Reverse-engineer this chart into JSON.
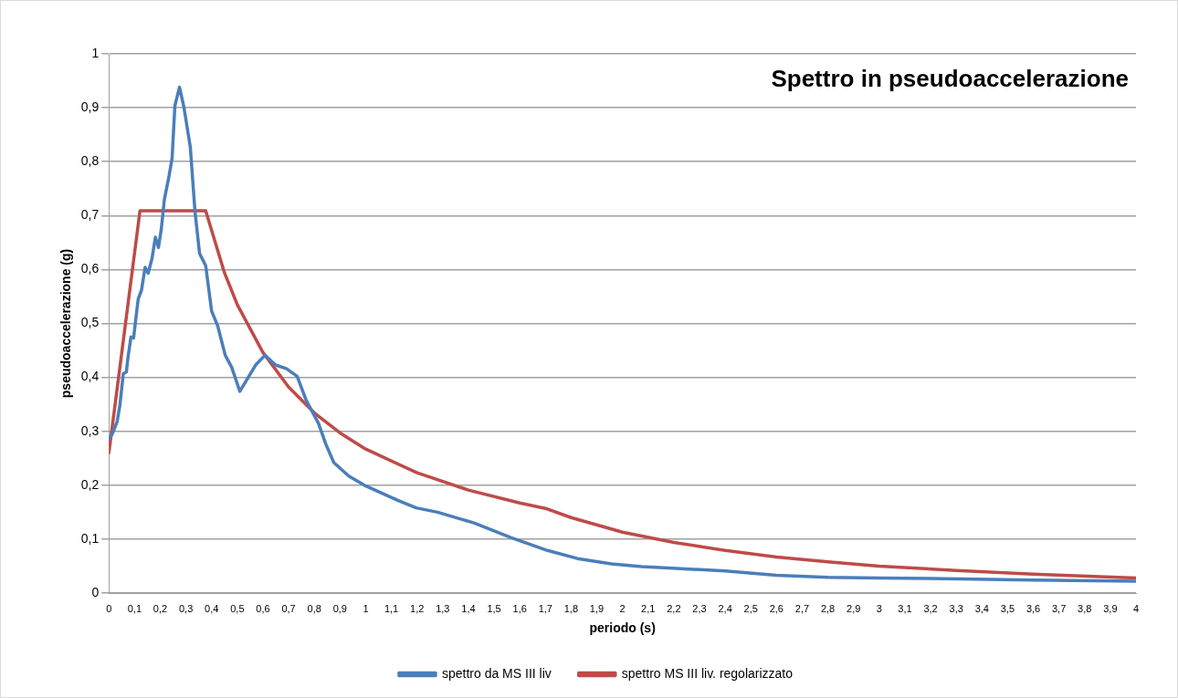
{
  "chart_data": {
    "type": "line",
    "title": "Spettro in pseudoaccelerazione",
    "xlabel": "periodo (s)",
    "ylabel": "pseudoaccelerazione (g)",
    "series": [
      {
        "name": "spettro da MS III liv",
        "color": "#4a7ebb",
        "x": [
          0,
          0.014,
          0.032,
          0.043,
          0.056,
          0.068,
          0.074,
          0.086,
          0.096,
          0.114,
          0.127,
          0.141,
          0.153,
          0.168,
          0.181,
          0.193,
          0.204,
          0.216,
          0.234,
          0.246,
          0.257,
          0.275,
          0.293,
          0.317,
          0.335,
          0.353,
          0.377,
          0.4,
          0.424,
          0.453,
          0.478,
          0.51,
          0.573,
          0.608,
          0.649,
          0.692,
          0.733,
          0.769,
          0.816,
          0.845,
          0.876,
          0.934,
          0.995,
          1.125,
          1.197,
          1.28,
          1.422,
          1.565,
          1.708,
          1.825,
          1.957,
          2.075,
          2.196,
          2.4,
          2.6,
          2.8,
          3.0,
          3.2,
          3.6,
          4.0
        ],
        "values": [
          0.285,
          0.296,
          0.318,
          0.349,
          0.407,
          0.41,
          0.436,
          0.475,
          0.473,
          0.545,
          0.562,
          0.604,
          0.593,
          0.621,
          0.66,
          0.641,
          0.675,
          0.73,
          0.773,
          0.806,
          0.904,
          0.938,
          0.899,
          0.827,
          0.709,
          0.63,
          0.607,
          0.523,
          0.495,
          0.441,
          0.419,
          0.374,
          0.424,
          0.441,
          0.423,
          0.416,
          0.402,
          0.357,
          0.315,
          0.276,
          0.242,
          0.217,
          0.2,
          0.172,
          0.158,
          0.15,
          0.13,
          0.103,
          0.079,
          0.064,
          0.054,
          0.049,
          0.046,
          0.041,
          0.033,
          0.029,
          0.028,
          0.027,
          0.024,
          0.022
        ]
      },
      {
        "name": "spettro MS III liv. regolarizzato",
        "color": "#be4b48",
        "x": [
          0,
          0.121,
          0.377,
          0.45,
          0.5,
          0.6,
          0.7,
          0.8,
          0.9,
          1.0,
          1.2,
          1.4,
          1.6,
          1.7,
          1.8,
          2.0,
          2.2,
          2.4,
          2.6,
          2.8,
          3.0,
          3.3,
          3.6,
          4.0
        ],
        "values": [
          0.26,
          0.709,
          0.709,
          0.594,
          0.535,
          0.446,
          0.382,
          0.334,
          0.297,
          0.267,
          0.223,
          0.191,
          0.167,
          0.157,
          0.14,
          0.113,
          0.094,
          0.079,
          0.067,
          0.058,
          0.05,
          0.042,
          0.035,
          0.028
        ]
      }
    ],
    "xlim": [
      0,
      4
    ],
    "xticks": [
      0,
      {
        "value": 0.1,
        "label": "0,1"
      },
      {
        "value": 0.2,
        "label": "0,2"
      },
      {
        "value": 0.3,
        "label": "0,3"
      },
      {
        "value": 0.4,
        "label": "0,4"
      },
      {
        "value": 0.5,
        "label": "0,5"
      },
      {
        "value": 0.6,
        "label": "0,6"
      },
      {
        "value": 0.7,
        "label": "0,7"
      },
      {
        "value": 0.8,
        "label": "0,8"
      },
      {
        "value": 0.9,
        "label": "0,9"
      },
      1,
      {
        "value": 1.1,
        "label": "1,1"
      },
      {
        "value": 1.2,
        "label": "1,2"
      },
      {
        "value": 1.3,
        "label": "1,3"
      },
      {
        "value": 1.4,
        "label": "1,4"
      },
      {
        "value": 1.5,
        "label": "1,5"
      },
      {
        "value": 1.6,
        "label": "1,6"
      },
      {
        "value": 1.7,
        "label": "1,7"
      },
      {
        "value": 1.8,
        "label": "1,8"
      },
      {
        "value": 1.9,
        "label": "1,9"
      },
      2,
      {
        "value": 2.1,
        "label": "2,1"
      },
      {
        "value": 2.2,
        "label": "2,2"
      },
      {
        "value": 2.3,
        "label": "2,3"
      },
      {
        "value": 2.4,
        "label": "2,4"
      },
      {
        "value": 2.5,
        "label": "2,5"
      },
      {
        "value": 2.6,
        "label": "2,6"
      },
      {
        "value": 2.7,
        "label": "2,7"
      },
      {
        "value": 2.8,
        "label": "2,8"
      },
      {
        "value": 2.9,
        "label": "2,9"
      },
      3,
      {
        "value": 3.1,
        "label": "3,1"
      },
      {
        "value": 3.2,
        "label": "3,2"
      },
      {
        "value": 3.3,
        "label": "3,3"
      },
      {
        "value": 3.4,
        "label": "3,4"
      },
      {
        "value": 3.5,
        "label": "3,5"
      },
      {
        "value": 3.6,
        "label": "3,6"
      },
      {
        "value": 3.7,
        "label": "3,7"
      },
      {
        "value": 3.8,
        "label": "3,8"
      },
      {
        "value": 3.9,
        "label": "3,9"
      },
      4
    ],
    "ylim": [
      0,
      1
    ],
    "yticks": [
      0,
      {
        "value": 0.1,
        "label": "0,1"
      },
      {
        "value": 0.2,
        "label": "0,2"
      },
      {
        "value": 0.3,
        "label": "0,3"
      },
      {
        "value": 0.4,
        "label": "0,4"
      },
      {
        "value": 0.5,
        "label": "0,5"
      },
      {
        "value": 0.6,
        "label": "0,6"
      },
      {
        "value": 0.7,
        "label": "0,7"
      },
      {
        "value": 0.8,
        "label": "0,8"
      },
      {
        "value": 0.9,
        "label": "0,9"
      },
      1
    ],
    "grid": "y",
    "legend": "bottom",
    "marker": "none",
    "line_style": "solid"
  }
}
